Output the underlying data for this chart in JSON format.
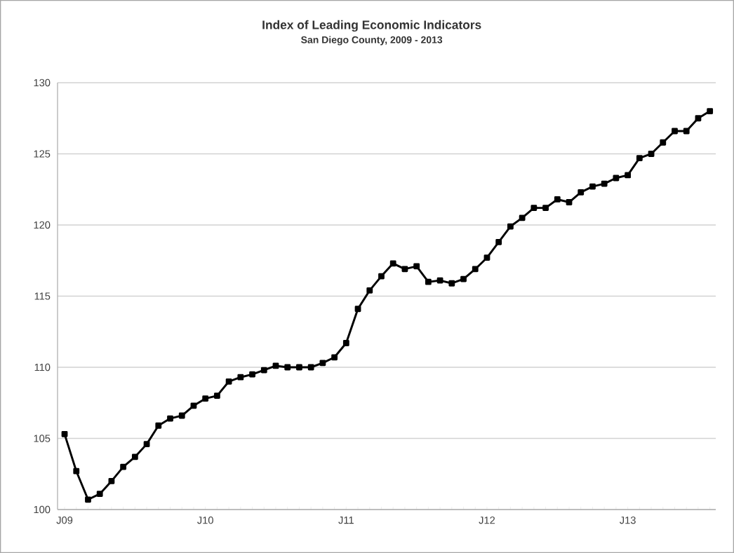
{
  "chart_data": {
    "type": "line",
    "title": "Index of Leading Economic Indicators",
    "subtitle": "San Diego County, 2009 - 2013",
    "categories": [
      "J09",
      null,
      null,
      null,
      null,
      null,
      null,
      null,
      null,
      null,
      null,
      null,
      "J10",
      null,
      null,
      null,
      null,
      null,
      null,
      null,
      null,
      null,
      null,
      null,
      "J11",
      null,
      null,
      null,
      null,
      null,
      null,
      null,
      null,
      null,
      null,
      null,
      "J12",
      null,
      null,
      null,
      null,
      null,
      null,
      null,
      null,
      null,
      null,
      null,
      "J13",
      null,
      null,
      null,
      null,
      null,
      null,
      null
    ],
    "values": [
      105.3,
      102.7,
      100.7,
      101.1,
      102.0,
      103.0,
      103.7,
      104.6,
      105.9,
      106.4,
      106.6,
      107.3,
      107.8,
      108.0,
      109.0,
      109.3,
      109.5,
      109.8,
      110.1,
      110.0,
      110.0,
      110.0,
      110.3,
      110.7,
      111.7,
      114.1,
      115.4,
      116.4,
      117.3,
      116.9,
      117.1,
      116.0,
      116.1,
      115.9,
      116.2,
      116.9,
      117.7,
      118.8,
      119.9,
      120.5,
      121.2,
      121.2,
      121.8,
      121.6,
      122.3,
      122.7,
      122.9,
      123.3,
      123.5,
      124.7,
      125.0,
      125.8,
      126.6,
      126.6,
      127.5,
      128.0
    ],
    "color": "#000000",
    "ylim": [
      100,
      130
    ],
    "yticks": [
      100,
      105,
      110,
      115,
      120,
      125,
      130
    ],
    "grid": "y",
    "marker": "square",
    "line_style": "solid"
  }
}
